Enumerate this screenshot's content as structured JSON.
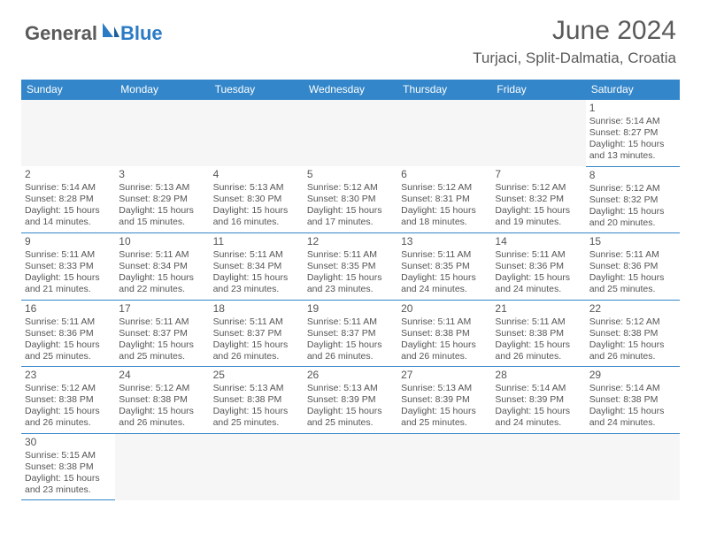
{
  "logo": {
    "part1": "General",
    "part2": "Blue"
  },
  "title": "June 2024",
  "location": "Turjaci, Split-Dalmatia, Croatia",
  "colors": {
    "header_bg": "#3386c9",
    "header_fg": "#ffffff",
    "grid_line": "#3386c9",
    "text": "#555555",
    "logo_blue": "#2a7bc4",
    "logo_gray": "#5a5a5a",
    "page_bg": "#ffffff"
  },
  "day_headers": [
    "Sunday",
    "Monday",
    "Tuesday",
    "Wednesday",
    "Thursday",
    "Friday",
    "Saturday"
  ],
  "weeks": [
    [
      null,
      null,
      null,
      null,
      null,
      null,
      {
        "n": "1",
        "sr": "5:14 AM",
        "ss": "8:27 PM",
        "dl": "15 hours and 13 minutes."
      }
    ],
    [
      {
        "n": "2",
        "sr": "5:14 AM",
        "ss": "8:28 PM",
        "dl": "15 hours and 14 minutes."
      },
      {
        "n": "3",
        "sr": "5:13 AM",
        "ss": "8:29 PM",
        "dl": "15 hours and 15 minutes."
      },
      {
        "n": "4",
        "sr": "5:13 AM",
        "ss": "8:30 PM",
        "dl": "15 hours and 16 minutes."
      },
      {
        "n": "5",
        "sr": "5:12 AM",
        "ss": "8:30 PM",
        "dl": "15 hours and 17 minutes."
      },
      {
        "n": "6",
        "sr": "5:12 AM",
        "ss": "8:31 PM",
        "dl": "15 hours and 18 minutes."
      },
      {
        "n": "7",
        "sr": "5:12 AM",
        "ss": "8:32 PM",
        "dl": "15 hours and 19 minutes."
      },
      {
        "n": "8",
        "sr": "5:12 AM",
        "ss": "8:32 PM",
        "dl": "15 hours and 20 minutes."
      }
    ],
    [
      {
        "n": "9",
        "sr": "5:11 AM",
        "ss": "8:33 PM",
        "dl": "15 hours and 21 minutes."
      },
      {
        "n": "10",
        "sr": "5:11 AM",
        "ss": "8:34 PM",
        "dl": "15 hours and 22 minutes."
      },
      {
        "n": "11",
        "sr": "5:11 AM",
        "ss": "8:34 PM",
        "dl": "15 hours and 23 minutes."
      },
      {
        "n": "12",
        "sr": "5:11 AM",
        "ss": "8:35 PM",
        "dl": "15 hours and 23 minutes."
      },
      {
        "n": "13",
        "sr": "5:11 AM",
        "ss": "8:35 PM",
        "dl": "15 hours and 24 minutes."
      },
      {
        "n": "14",
        "sr": "5:11 AM",
        "ss": "8:36 PM",
        "dl": "15 hours and 24 minutes."
      },
      {
        "n": "15",
        "sr": "5:11 AM",
        "ss": "8:36 PM",
        "dl": "15 hours and 25 minutes."
      }
    ],
    [
      {
        "n": "16",
        "sr": "5:11 AM",
        "ss": "8:36 PM",
        "dl": "15 hours and 25 minutes."
      },
      {
        "n": "17",
        "sr": "5:11 AM",
        "ss": "8:37 PM",
        "dl": "15 hours and 25 minutes."
      },
      {
        "n": "18",
        "sr": "5:11 AM",
        "ss": "8:37 PM",
        "dl": "15 hours and 26 minutes."
      },
      {
        "n": "19",
        "sr": "5:11 AM",
        "ss": "8:37 PM",
        "dl": "15 hours and 26 minutes."
      },
      {
        "n": "20",
        "sr": "5:11 AM",
        "ss": "8:38 PM",
        "dl": "15 hours and 26 minutes."
      },
      {
        "n": "21",
        "sr": "5:11 AM",
        "ss": "8:38 PM",
        "dl": "15 hours and 26 minutes."
      },
      {
        "n": "22",
        "sr": "5:12 AM",
        "ss": "8:38 PM",
        "dl": "15 hours and 26 minutes."
      }
    ],
    [
      {
        "n": "23",
        "sr": "5:12 AM",
        "ss": "8:38 PM",
        "dl": "15 hours and 26 minutes."
      },
      {
        "n": "24",
        "sr": "5:12 AM",
        "ss": "8:38 PM",
        "dl": "15 hours and 26 minutes."
      },
      {
        "n": "25",
        "sr": "5:13 AM",
        "ss": "8:38 PM",
        "dl": "15 hours and 25 minutes."
      },
      {
        "n": "26",
        "sr": "5:13 AM",
        "ss": "8:39 PM",
        "dl": "15 hours and 25 minutes."
      },
      {
        "n": "27",
        "sr": "5:13 AM",
        "ss": "8:39 PM",
        "dl": "15 hours and 25 minutes."
      },
      {
        "n": "28",
        "sr": "5:14 AM",
        "ss": "8:39 PM",
        "dl": "15 hours and 24 minutes."
      },
      {
        "n": "29",
        "sr": "5:14 AM",
        "ss": "8:38 PM",
        "dl": "15 hours and 24 minutes."
      }
    ],
    [
      {
        "n": "30",
        "sr": "5:15 AM",
        "ss": "8:38 PM",
        "dl": "15 hours and 23 minutes."
      },
      null,
      null,
      null,
      null,
      null,
      null
    ]
  ],
  "labels": {
    "sunrise": "Sunrise:",
    "sunset": "Sunset:",
    "daylight": "Daylight:"
  }
}
